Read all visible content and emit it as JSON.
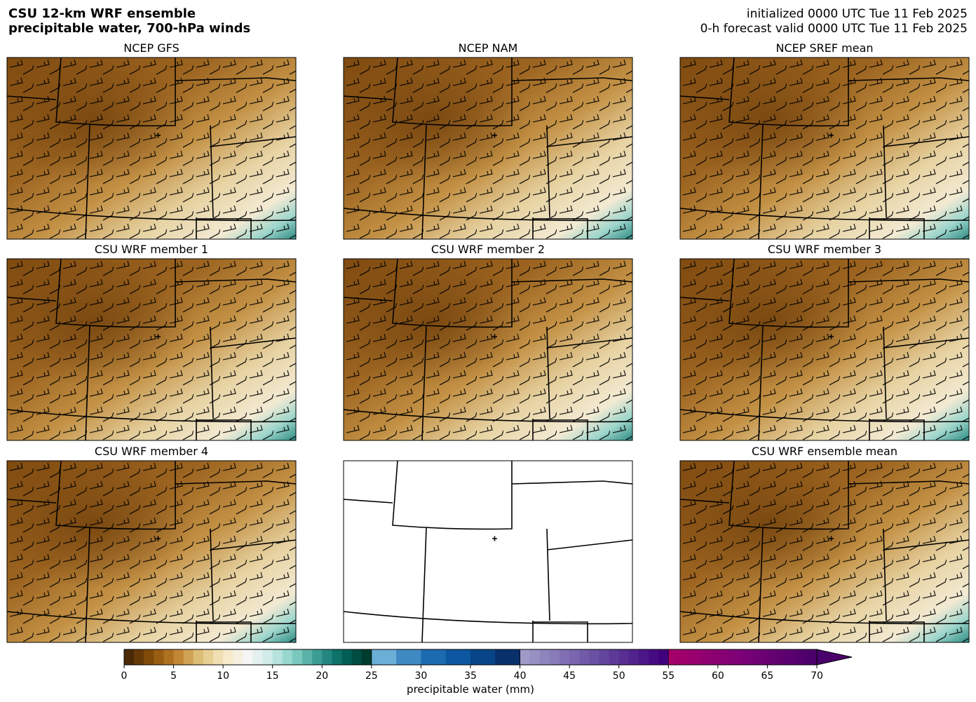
{
  "header": {
    "title": [
      "CSU 12-km WRF ensemble",
      "precipitable water, 700-hPa winds"
    ],
    "info": [
      "initialized 0000 UTC Tue 11 Feb 2025",
      "0-h forecast valid 0000 UTC Tue 11 Feb 2025"
    ]
  },
  "panels": [
    "NCEP GFS",
    "NCEP NAM",
    "NCEP SREF mean",
    "CSU WRF member 1",
    "CSU WRF member 2",
    "CSU WRF member 3",
    "CSU WRF member 4",
    "CSU WRF ensemble mean"
  ],
  "colorbar": {
    "label": "precipitable water (mm)",
    "lim": [
      0,
      70
    ],
    "ticks": [
      0,
      5,
      10,
      15,
      20,
      25,
      30,
      35,
      40,
      45,
      50,
      55,
      60,
      65,
      70
    ],
    "extend": "max",
    "segments": [
      {
        "range": [
          0,
          25
        ],
        "step": 1,
        "colors": [
          "#4a2a06",
          "#8c510a",
          "#bf812d",
          "#dfc27d",
          "#f6e8c3",
          "#f5f5f5",
          "#c7eae5",
          "#80cdc1",
          "#35978f",
          "#01665e",
          "#003c30"
        ]
      },
      {
        "range": [
          25,
          40
        ],
        "step": 2.5,
        "colors": [
          "#6baed6",
          "#2171b5",
          "#08519c",
          "#08306b"
        ]
      },
      {
        "range": [
          40,
          55
        ],
        "step": 1,
        "colors": [
          "#9e9ac8",
          "#6a51a3",
          "#3f007d"
        ]
      },
      {
        "range": [
          55,
          70
        ],
        "step": 0.5,
        "colors": [
          "#a6006a",
          "#7a0177",
          "#49006a"
        ]
      }
    ]
  }
}
